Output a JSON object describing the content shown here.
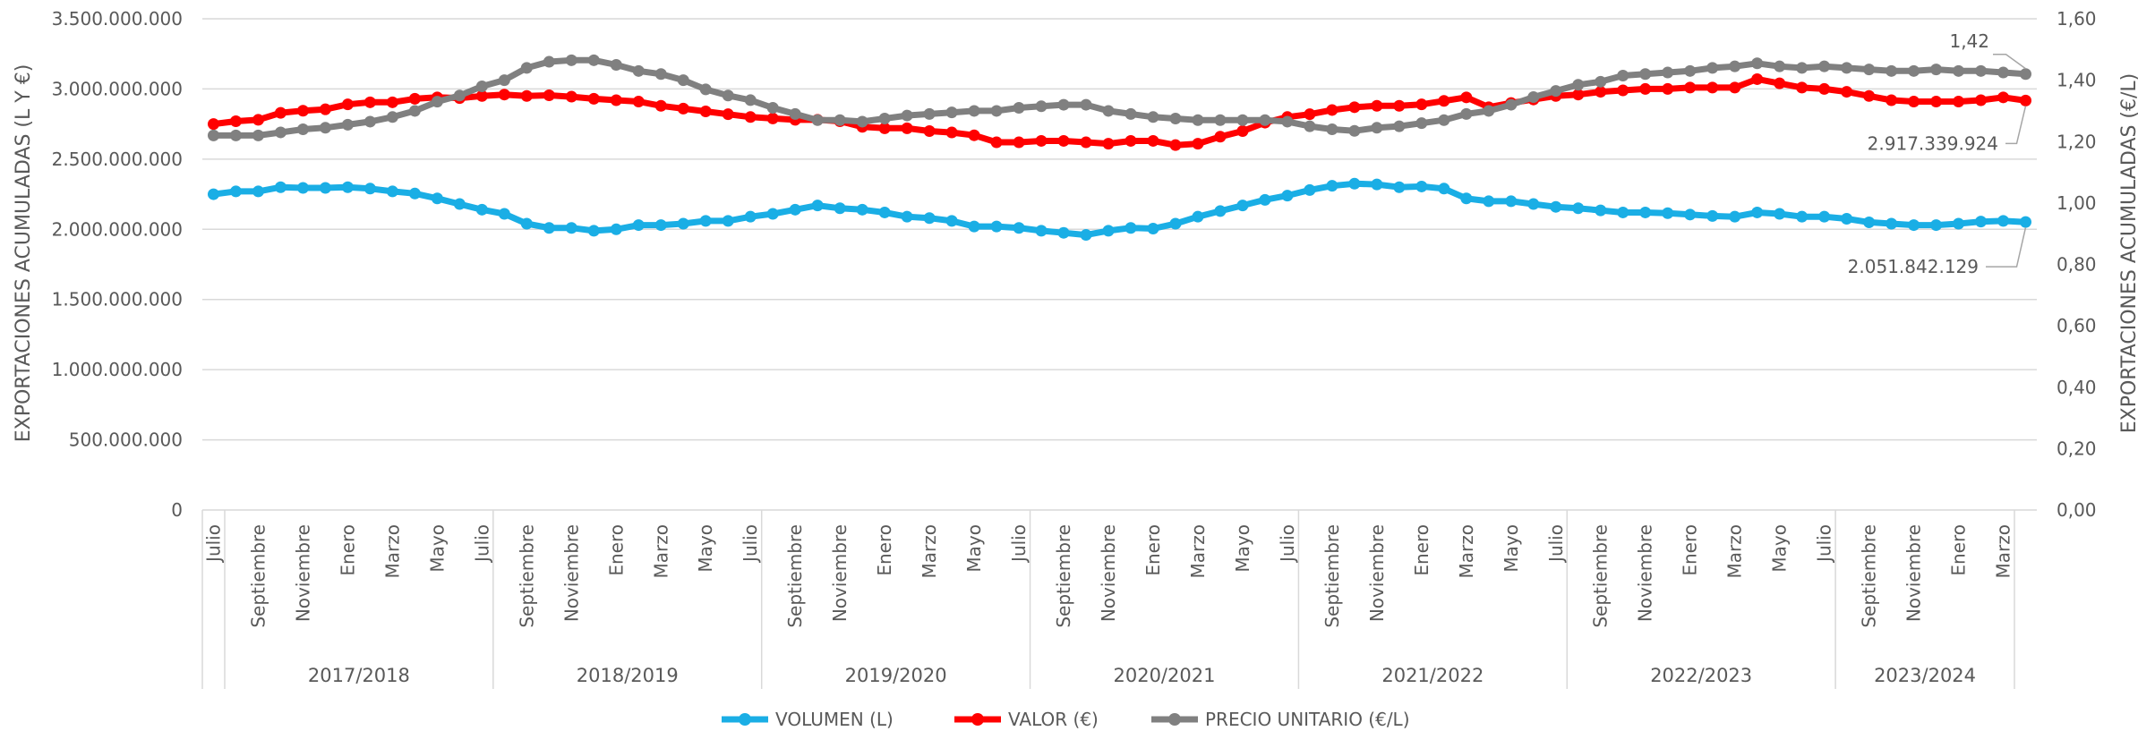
{
  "chart_data": {
    "type": "line",
    "title": "",
    "ylabel_left": "EXPORTACIONES ACUMULADAS (L Y €)",
    "ylabel_right": "EXPORTACIONES ACUMULADAS (€/L)",
    "ylim_left": [
      0,
      3500000000
    ],
    "ylim_right": [
      0,
      1.6
    ],
    "yticks_left": [
      "0",
      "500.000.000",
      "1.000.000.000",
      "1.500.000.000",
      "2.000.000.000",
      "2.500.000.000",
      "3.000.000.000",
      "3.500.000.000"
    ],
    "yticks_right": [
      "0,00",
      "0,20",
      "0,40",
      "0,60",
      "0,80",
      "1,00",
      "1,20",
      "1,40",
      "1,60"
    ],
    "grid": true,
    "legend_position": "bottom",
    "x_month_labels": [
      "Julio",
      "Septiembre",
      "Noviembre",
      "Enero",
      "Marzo",
      "Mayo",
      "Julio",
      "Septiembre",
      "Noviembre",
      "Enero",
      "Marzo",
      "Mayo",
      "Julio",
      "Septiembre",
      "Noviembre",
      "Enero",
      "Marzo",
      "Mayo",
      "Julio",
      "Septiembre",
      "Noviembre",
      "Enero",
      "Marzo",
      "Mayo",
      "Julio",
      "Septiembre",
      "Noviembre",
      "Enero",
      "Marzo",
      "Mayo",
      "Julio",
      "Septiembre",
      "Noviembre",
      "Enero",
      "Marzo",
      "Mayo",
      "Julio",
      "Septiembre",
      "Noviembre",
      "Enero",
      "Marzo"
    ],
    "x_month_positions": [
      0,
      2,
      4,
      6,
      8,
      10,
      12,
      14,
      16,
      18,
      20,
      22,
      24,
      26,
      28,
      30,
      32,
      34,
      36,
      38,
      40,
      42,
      44,
      46,
      48,
      50,
      52,
      54,
      56,
      58,
      60,
      62,
      64,
      66,
      68,
      70,
      72,
      74,
      76,
      78,
      80
    ],
    "seasons": [
      {
        "label": "2017/2018",
        "start": 1,
        "end": 12
      },
      {
        "label": "2018/2019",
        "start": 13,
        "end": 24
      },
      {
        "label": "2019/2020",
        "start": 25,
        "end": 36
      },
      {
        "label": "2020/2021",
        "start": 37,
        "end": 48
      },
      {
        "label": "2021/2022",
        "start": 49,
        "end": 60
      },
      {
        "label": "2022/2023",
        "start": 61,
        "end": 72
      },
      {
        "label": "2023/2024",
        "start": 73,
        "end": 80
      }
    ],
    "series": [
      {
        "name": "VOLUMEN (L)",
        "axis": "left",
        "color": "#1aaee5",
        "values": [
          2250000000,
          2270000000,
          2270000000,
          2300000000,
          2295000000,
          2295000000,
          2300000000,
          2290000000,
          2270000000,
          2255000000,
          2220000000,
          2180000000,
          2140000000,
          2110000000,
          2040000000,
          2010000000,
          2010000000,
          1990000000,
          2000000000,
          2030000000,
          2030000000,
          2040000000,
          2060000000,
          2060000000,
          2090000000,
          2110000000,
          2140000000,
          2170000000,
          2150000000,
          2140000000,
          2120000000,
          2090000000,
          2080000000,
          2060000000,
          2020000000,
          2020000000,
          2010000000,
          1990000000,
          1975000000,
          1960000000,
          1990000000,
          2010000000,
          2005000000,
          2040000000,
          2090000000,
          2130000000,
          2170000000,
          2210000000,
          2240000000,
          2280000000,
          2310000000,
          2325000000,
          2320000000,
          2300000000,
          2305000000,
          2290000000,
          2220000000,
          2200000000,
          2200000000,
          2180000000,
          2160000000,
          2150000000,
          2135000000,
          2120000000,
          2120000000,
          2115000000,
          2105000000,
          2095000000,
          2090000000,
          2120000000,
          2110000000,
          2090000000,
          2090000000,
          2075000000,
          2050000000,
          2040000000,
          2030000000,
          2030000000,
          2040000000,
          2055000000,
          2060000000,
          2051842129
        ]
      },
      {
        "name": "VALOR (€)",
        "axis": "left",
        "color": "#ff0000",
        "values": [
          2750000000,
          2770000000,
          2780000000,
          2830000000,
          2845000000,
          2855000000,
          2890000000,
          2905000000,
          2905000000,
          2930000000,
          2940000000,
          2935000000,
          2950000000,
          2960000000,
          2950000000,
          2955000000,
          2945000000,
          2930000000,
          2920000000,
          2910000000,
          2880000000,
          2860000000,
          2840000000,
          2820000000,
          2800000000,
          2790000000,
          2780000000,
          2780000000,
          2770000000,
          2730000000,
          2720000000,
          2720000000,
          2700000000,
          2690000000,
          2670000000,
          2620000000,
          2620000000,
          2630000000,
          2630000000,
          2620000000,
          2610000000,
          2630000000,
          2630000000,
          2600000000,
          2610000000,
          2660000000,
          2700000000,
          2760000000,
          2800000000,
          2820000000,
          2850000000,
          2870000000,
          2880000000,
          2880000000,
          2890000000,
          2915000000,
          2940000000,
          2870000000,
          2900000000,
          2925000000,
          2950000000,
          2960000000,
          2980000000,
          2990000000,
          3000000000,
          3000000000,
          3010000000,
          3010000000,
          3010000000,
          3070000000,
          3040000000,
          3010000000,
          3000000000,
          2980000000,
          2950000000,
          2920000000,
          2910000000,
          2910000000,
          2910000000,
          2920000000,
          2940000000,
          2917339924
        ]
      },
      {
        "name": "PRECIO UNITARIO (€/L)",
        "axis": "right",
        "color": "#808080",
        "values": [
          1.22,
          1.22,
          1.22,
          1.23,
          1.24,
          1.245,
          1.255,
          1.265,
          1.28,
          1.3,
          1.33,
          1.35,
          1.38,
          1.4,
          1.44,
          1.46,
          1.465,
          1.465,
          1.45,
          1.43,
          1.42,
          1.4,
          1.37,
          1.35,
          1.335,
          1.31,
          1.29,
          1.27,
          1.27,
          1.265,
          1.275,
          1.285,
          1.29,
          1.295,
          1.3,
          1.3,
          1.31,
          1.315,
          1.32,
          1.32,
          1.3,
          1.29,
          1.28,
          1.275,
          1.27,
          1.27,
          1.27,
          1.27,
          1.265,
          1.25,
          1.24,
          1.235,
          1.245,
          1.25,
          1.26,
          1.27,
          1.29,
          1.3,
          1.32,
          1.345,
          1.365,
          1.385,
          1.395,
          1.415,
          1.42,
          1.425,
          1.43,
          1.44,
          1.445,
          1.455,
          1.445,
          1.44,
          1.445,
          1.44,
          1.435,
          1.43,
          1.43,
          1.435,
          1.43,
          1.43,
          1.425,
          1.42
        ]
      }
    ],
    "annotations": [
      {
        "text": "1,42",
        "series": 2
      },
      {
        "text": "2.917.339.924",
        "series": 1
      },
      {
        "text": "2.051.842.129",
        "series": 0
      }
    ]
  }
}
